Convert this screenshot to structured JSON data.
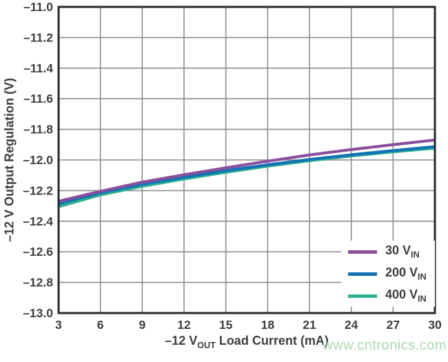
{
  "colors": {
    "background": "#ffffff",
    "frame": "#23282c",
    "grid": "#8a8d8f",
    "text": "#3a3e41",
    "watermark": "#abd7af",
    "series_purple": "#8a4f9c",
    "series_blue": "#1173b5",
    "series_green": "#2fae90"
  },
  "watermark": "www.cntronics.com",
  "chart_data": {
    "type": "line",
    "title": "",
    "ylabel": "–12 V Output Regulation (V)",
    "xlabel_parts": {
      "pre": "–12 V",
      "sub": "OUT",
      "post": " Load Current (mA)"
    },
    "xlim": [
      3,
      30
    ],
    "ylim": [
      -13.0,
      -11.0
    ],
    "grid": true,
    "legend_position": "lower right",
    "x": [
      3,
      6,
      9,
      12,
      15,
      18,
      21,
      24,
      27,
      30
    ],
    "x_ticks": [
      3,
      6,
      9,
      12,
      15,
      18,
      21,
      24,
      27,
      30
    ],
    "x_tick_labels": [
      "3",
      "6",
      "9",
      "12",
      "15",
      "18",
      "21",
      "24",
      "27",
      "30"
    ],
    "y_ticks": [
      -11.0,
      -11.2,
      -11.4,
      -11.6,
      -11.8,
      -12.0,
      -12.2,
      -12.4,
      -12.6,
      -12.8,
      -13.0
    ],
    "y_tick_labels": [
      "–11.0",
      "–11.2",
      "–11.4",
      "–11.6",
      "–11.8",
      "–12.0",
      "–12.2",
      "–12.4",
      "–12.6",
      "–12.8",
      "–13.0"
    ],
    "series": [
      {
        "label": {
          "value": "30",
          "unit": "V",
          "sub": "IN"
        },
        "color": "#8a4f9c",
        "values": [
          -12.27,
          -12.205,
          -12.145,
          -12.097,
          -12.052,
          -12.008,
          -11.967,
          -11.932,
          -11.9,
          -11.87
        ]
      },
      {
        "label": {
          "value": "200",
          "unit": "V",
          "sub": "IN"
        },
        "color": "#1173b5",
        "values": [
          -12.285,
          -12.215,
          -12.158,
          -12.113,
          -12.07,
          -12.032,
          -11.997,
          -11.966,
          -11.939,
          -11.913
        ]
      },
      {
        "label": {
          "value": "400",
          "unit": "V",
          "sub": "IN"
        },
        "color": "#2fae90",
        "values": [
          -12.305,
          -12.228,
          -12.172,
          -12.124,
          -12.08,
          -12.04,
          -12.005,
          -11.974,
          -11.947,
          -11.923
        ]
      }
    ]
  }
}
